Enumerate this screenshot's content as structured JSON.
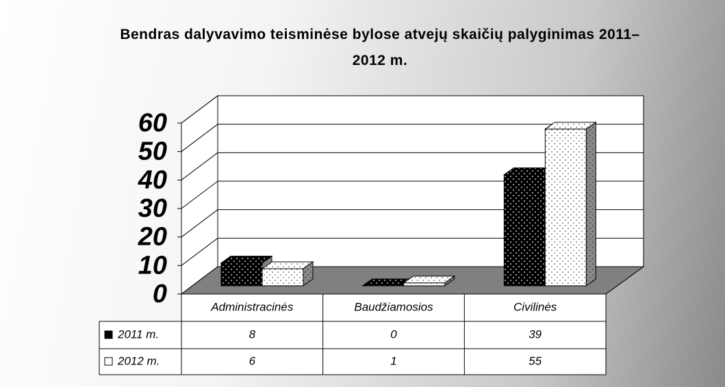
{
  "chart_data": {
    "type": "bar3d",
    "title": "Bendras dalyvavimo teisminėse bylose atvejų skaičių palyginimas 2011–2012 m.",
    "categories": [
      "Administracinės",
      "Baudžiamosios",
      "Civilinės"
    ],
    "series": [
      {
        "name": "2011 m.",
        "color": "#000000",
        "values": [
          8,
          0,
          39
        ]
      },
      {
        "name": "2012 m.",
        "color": "#ffffff",
        "values": [
          6,
          1,
          55
        ]
      }
    ],
    "ylim": [
      0,
      60
    ],
    "yticks": [
      0,
      10,
      20,
      30,
      40,
      50,
      60
    ],
    "grid": true,
    "data_table": true
  }
}
